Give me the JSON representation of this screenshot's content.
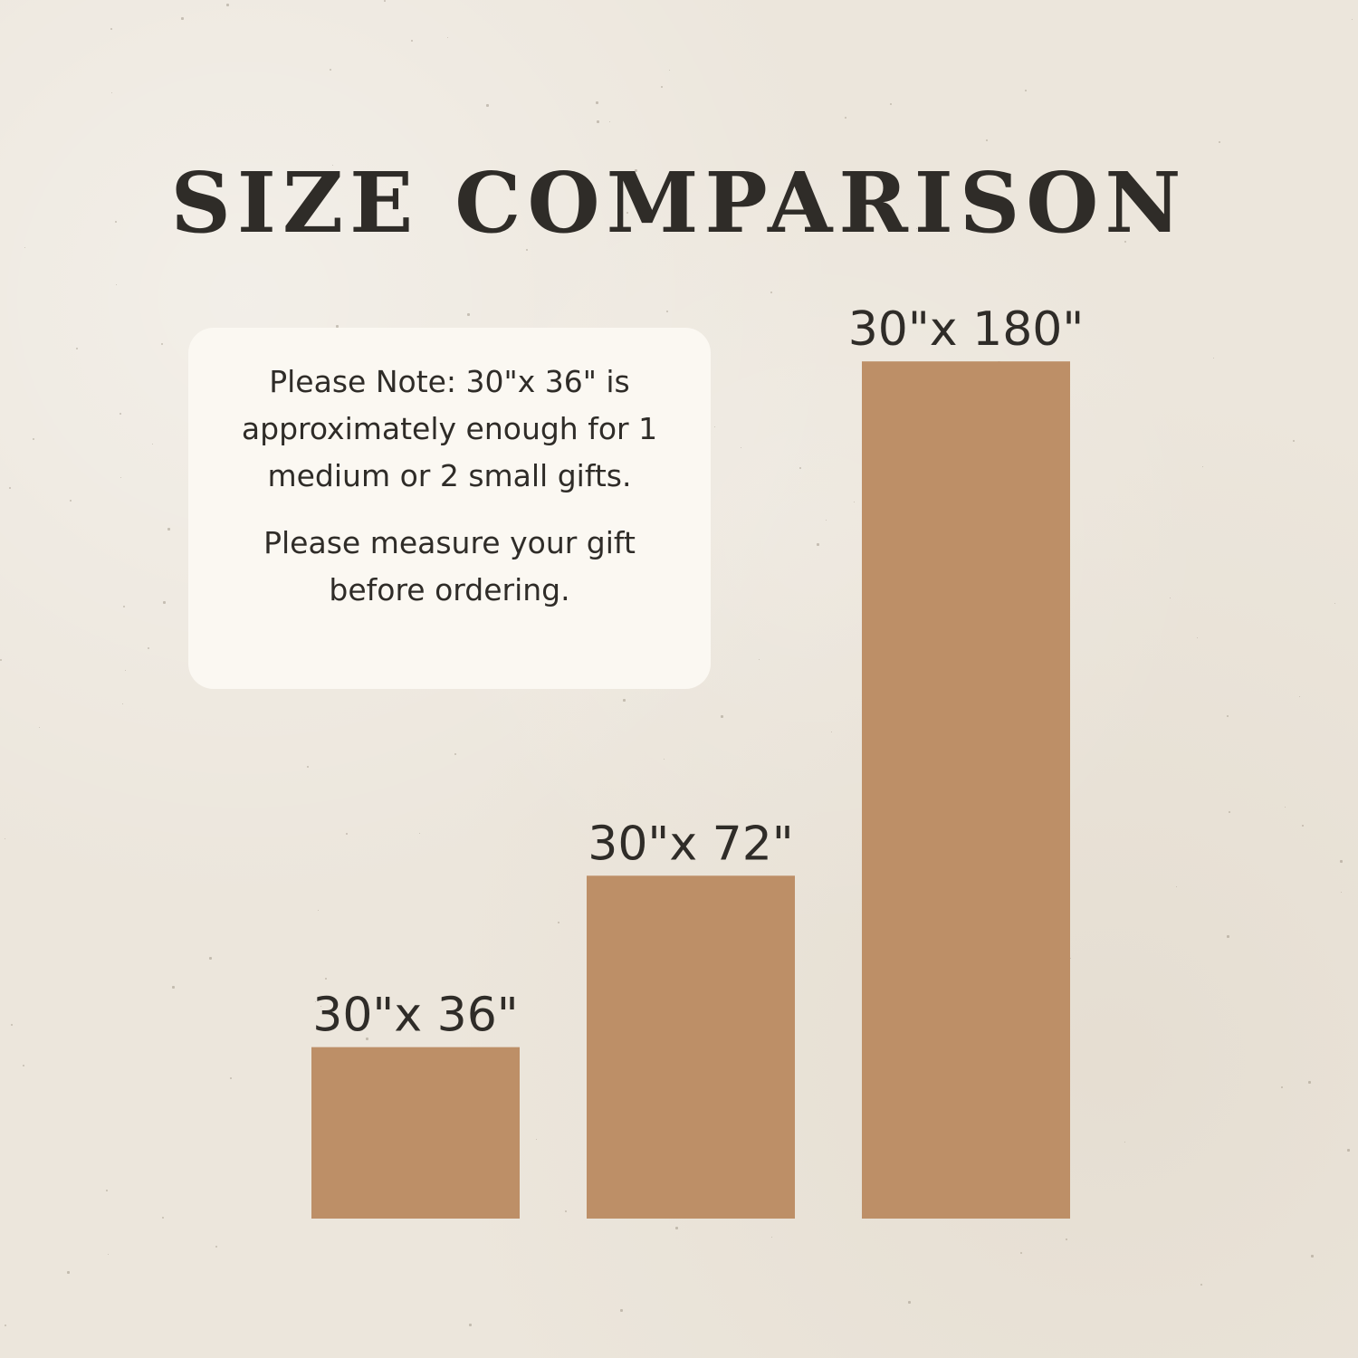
{
  "title": "SIZE COMPARISON",
  "note": {
    "paragraph_1": "Please Note: 30\"x 36\" is approximately enough for 1 medium or 2 small gifts.",
    "paragraph_2": "Please measure your gift before ordering."
  },
  "colors": {
    "background": "#ece6dc",
    "bar": "#bd8f67",
    "card": "#fbf8f2",
    "text": "#2f2c28"
  },
  "chart_data": {
    "type": "bar",
    "title": "SIZE COMPARISON",
    "xlabel": "",
    "ylabel": "",
    "categories": [
      "30\"x 36\"",
      "30\"x 72\"",
      "30\"x 180\""
    ],
    "values": [
      36,
      72,
      180
    ],
    "width_inches": [
      30,
      30,
      30
    ],
    "grid": false,
    "legend": "none"
  }
}
